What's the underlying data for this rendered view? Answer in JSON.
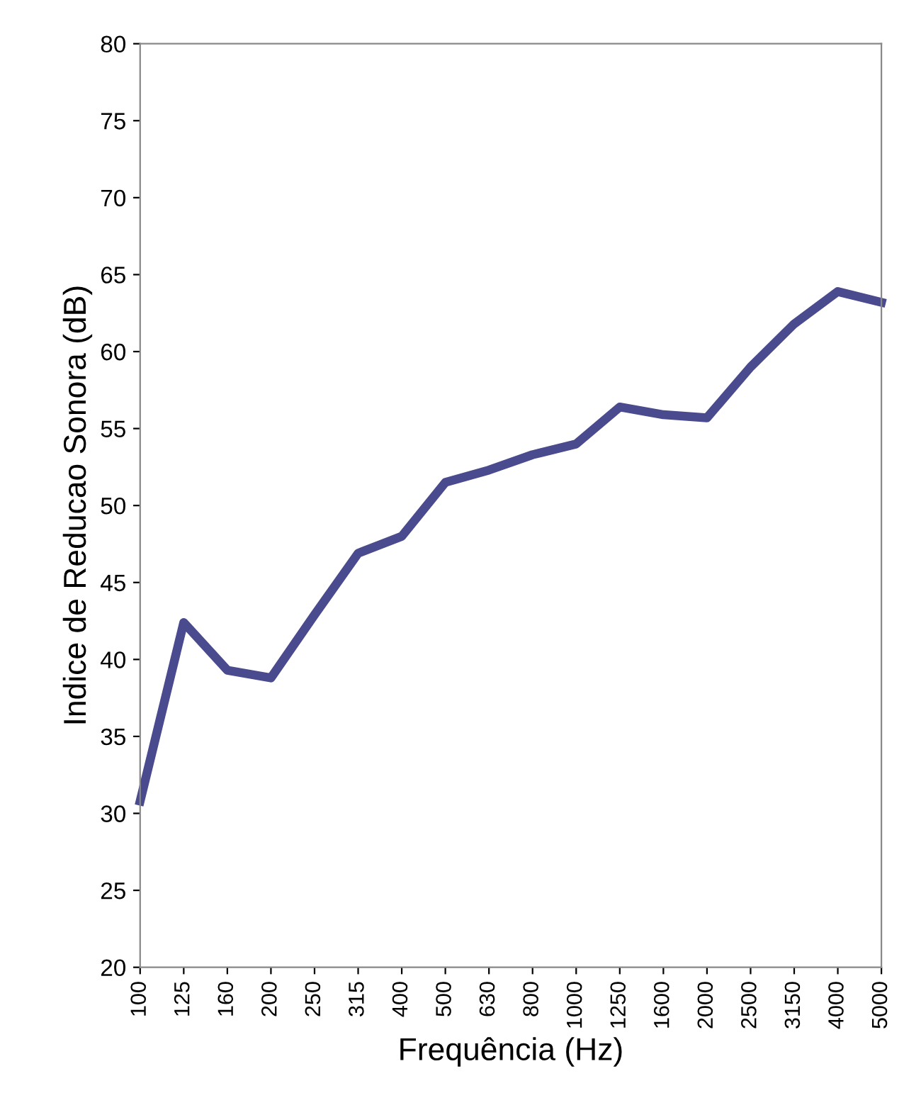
{
  "chart_data": {
    "type": "line",
    "xlabel": "Frequência (Hz)",
    "ylabel": "Indice de Reducao Sonora (dB)",
    "categories": [
      "100",
      "125",
      "160",
      "200",
      "250",
      "315",
      "400",
      "500",
      "630",
      "800",
      "1000",
      "1250",
      "1600",
      "2000",
      "2500",
      "3150",
      "4000",
      "5000"
    ],
    "series": [
      {
        "color": "#4a4a8e",
        "values": [
          30.8,
          42.4,
          39.3,
          38.8,
          42.9,
          46.9,
          48.0,
          51.5,
          52.3,
          53.3,
          54.0,
          56.4,
          55.9,
          55.7,
          59.0,
          61.8,
          63.9,
          63.2
        ]
      }
    ],
    "ylim": [
      20,
      80
    ],
    "yticks": [
      20,
      25,
      30,
      35,
      40,
      45,
      50,
      55,
      60,
      65,
      70,
      75,
      80
    ],
    "grid": false,
    "marker": "none",
    "line_style": "solid"
  }
}
